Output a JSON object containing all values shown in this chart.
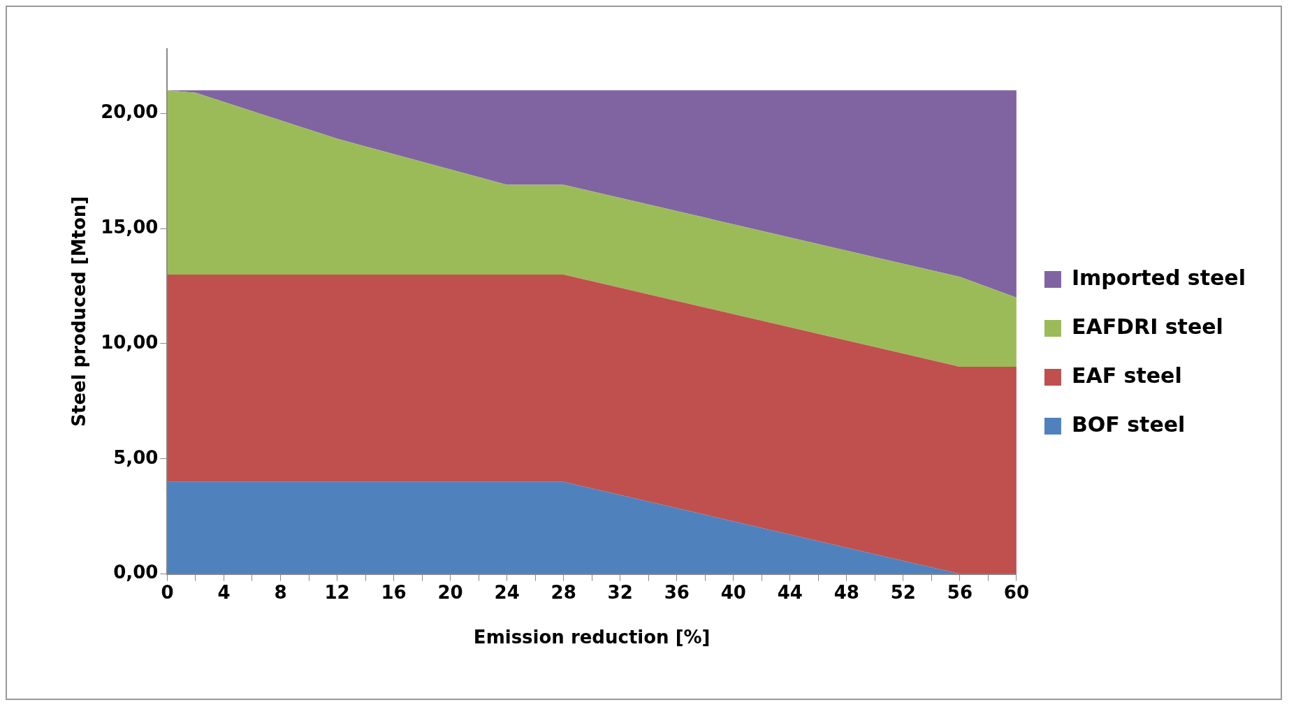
{
  "chart_data": {
    "type": "area",
    "stacked": true,
    "xlabel": "Emission reduction [%]",
    "ylabel": "Steel produced [Mton]",
    "x": [
      0,
      2,
      8,
      12,
      24,
      28,
      56,
      60
    ],
    "series": [
      {
        "name": "BOF steel",
        "color": "#4f81bd",
        "values": [
          4,
          4,
          4,
          4,
          4,
          4,
          0,
          0
        ]
      },
      {
        "name": "EAF steel",
        "color": "#c0504d",
        "values": [
          9,
          9,
          9,
          9,
          9,
          9,
          9,
          9
        ]
      },
      {
        "name": "EAFDRI steel",
        "color": "#9bbb59",
        "values": [
          8,
          7.9,
          6.7,
          5.9,
          3.9,
          3.9,
          3.9,
          3
        ]
      },
      {
        "name": "Imported steel",
        "color": "#8064a2",
        "values": [
          0,
          0.1,
          1.3,
          2.1,
          4.1,
          4.1,
          8.1,
          9
        ]
      }
    ],
    "xlim": [
      0,
      60
    ],
    "xticks": [
      0,
      {
        "value": 2,
        "label": null
      },
      4,
      {
        "value": 6,
        "label": null
      },
      8,
      {
        "value": 10,
        "label": null
      },
      12,
      {
        "value": 14,
        "label": null
      },
      16,
      {
        "value": 18,
        "label": null
      },
      20,
      {
        "value": 22,
        "label": null
      },
      24,
      {
        "value": 26,
        "label": null
      },
      28,
      {
        "value": 30,
        "label": null
      },
      32,
      {
        "value": 34,
        "label": null
      },
      36,
      {
        "value": 38,
        "label": null
      },
      40,
      {
        "value": 42,
        "label": null
      },
      44,
      {
        "value": 46,
        "label": null
      },
      48,
      {
        "value": 50,
        "label": null
      },
      52,
      {
        "value": 54,
        "label": null
      },
      56,
      {
        "value": 58,
        "label": null
      },
      60
    ],
    "ylim": [
      0,
      22.8
    ],
    "yticks": [
      {
        "value": 0,
        "label": "0,00"
      },
      {
        "value": 5,
        "label": "5,00"
      },
      {
        "value": 10,
        "label": "10,00"
      },
      {
        "value": 15,
        "label": "15,00"
      },
      {
        "value": 20,
        "label": "20,00"
      }
    ],
    "legend": "right"
  }
}
